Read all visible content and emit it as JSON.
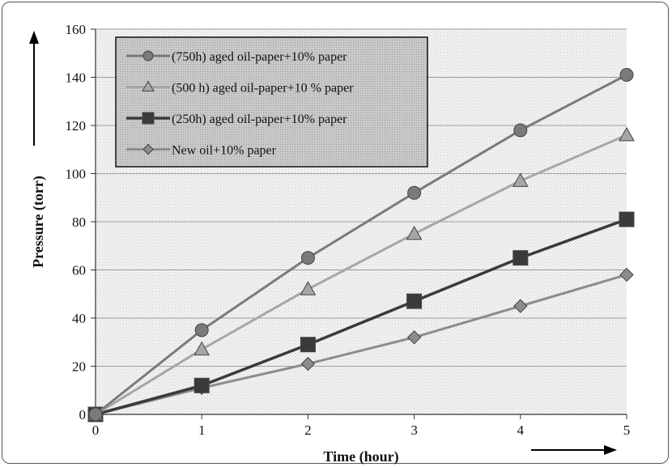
{
  "chart_data": {
    "type": "line",
    "title": "",
    "xlabel": "Time (hour)",
    "ylabel": "Pressure (torr)",
    "x": [
      0,
      1,
      2,
      3,
      4,
      5
    ],
    "xlim": [
      0,
      5
    ],
    "ylim": [
      0,
      160
    ],
    "x_ticks": [
      "0",
      "1",
      "2",
      "3",
      "4",
      "5"
    ],
    "y_ticks": [
      "0",
      "20",
      "40",
      "60",
      "80",
      "100",
      "120",
      "140",
      "160"
    ],
    "grid": true,
    "legend_position": "top-left",
    "series": [
      {
        "name": "(750h) aged oil-paper+10% paper",
        "values": [
          0,
          35,
          65,
          92,
          118,
          141
        ],
        "marker": "circle",
        "color": "#7a7a7a"
      },
      {
        "name": "(500 h) aged oil-paper+10 % paper",
        "values": [
          0,
          27,
          52,
          75,
          97,
          116
        ],
        "marker": "triangle",
        "color": "#a6a6a6"
      },
      {
        "name": "(250h) aged oil-paper+10% paper",
        "values": [
          0,
          12,
          29,
          47,
          65,
          81
        ],
        "marker": "square",
        "color": "#3a3a3a"
      },
      {
        "name": "New oil+10% paper",
        "values": [
          0,
          11,
          21,
          32,
          45,
          58
        ],
        "marker": "diamond",
        "color": "#8c8c8c"
      }
    ]
  }
}
